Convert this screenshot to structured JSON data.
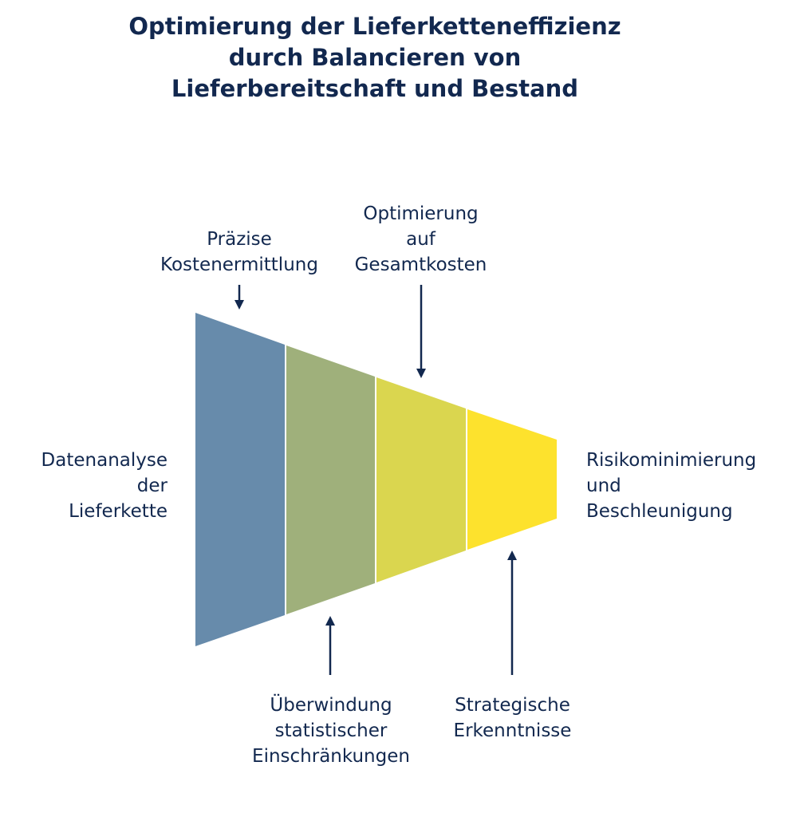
{
  "title": {
    "line1": "Optimierung der Lieferketteneffizienz",
    "line2": "durch Balancieren von",
    "line3": "Lieferbereitschaft und Bestand"
  },
  "segments": [
    {
      "color": "#678bab"
    },
    {
      "color": "#9fb07b"
    },
    {
      "color": "#dad64f"
    },
    {
      "color": "#fde22d"
    }
  ],
  "labels": {
    "left": {
      "line1": "Datenanalyse",
      "line2": "der",
      "line3": "Lieferkette"
    },
    "right": {
      "line1": "Risikominimierung",
      "line2": "und",
      "line3": "Beschleunigung"
    },
    "top1": {
      "line1": "Präzise",
      "line2": "Kostenermittlung"
    },
    "top2": {
      "line1": "Optimierung",
      "line2": "auf",
      "line3": "Gesamtkosten"
    },
    "bottom1": {
      "line1": "Überwindung",
      "line2": "statistischer",
      "line3": "Einschränkungen"
    },
    "bottom2": {
      "line1": "Strategische",
      "line2": "Erkenntnisse"
    }
  },
  "colors": {
    "text": "#12284f",
    "arrow": "#12284f"
  }
}
